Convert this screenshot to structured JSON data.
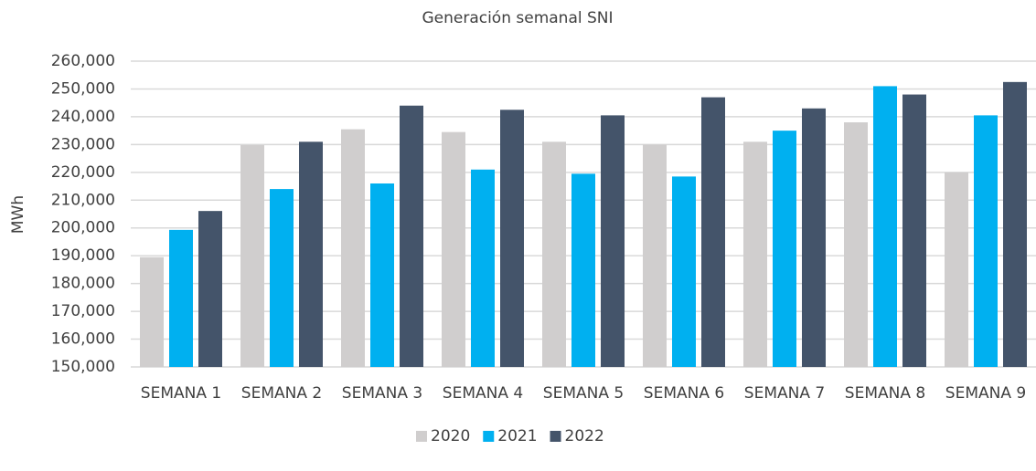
{
  "chart_data": {
    "type": "bar",
    "title": "Generación semanal SNI",
    "y_label": "MWh",
    "categories": [
      "SEMANA 1",
      "SEMANA 2",
      "SEMANA 3",
      "SEMANA 4",
      "SEMANA 5",
      "SEMANA 6",
      "SEMANA 7",
      "SEMANA 8",
      "SEMANA 9"
    ],
    "series": [
      {
        "name": "2020",
        "color": "#d0cece",
        "values": [
          189500,
          229800,
          235500,
          234500,
          231000,
          230000,
          231000,
          238000,
          220000
        ]
      },
      {
        "name": "2021",
        "color": "#00b0f0",
        "values": [
          199300,
          214000,
          216000,
          221000,
          219500,
          218500,
          235000,
          251000,
          240500
        ]
      },
      {
        "name": "2022",
        "color": "#44546a",
        "values": [
          206100,
          231000,
          244000,
          242500,
          240500,
          247000,
          243000,
          248000,
          252500
        ]
      }
    ],
    "ylim": [
      150000,
      260000
    ],
    "yticks": [
      {
        "value": 150000,
        "label": "150,000"
      },
      {
        "value": 160000,
        "label": "160,000"
      },
      {
        "value": 170000,
        "label": "170,000"
      },
      {
        "value": 180000,
        "label": "180,000"
      },
      {
        "value": 190000,
        "label": "190,000"
      },
      {
        "value": 200000,
        "label": "200,000"
      },
      {
        "value": 210000,
        "label": "210,000"
      },
      {
        "value": 220000,
        "label": "220,000"
      },
      {
        "value": 230000,
        "label": "230,000"
      },
      {
        "value": 240000,
        "label": "240,000"
      },
      {
        "value": 250000,
        "label": "250,000"
      },
      {
        "value": 260000,
        "label": "260,000"
      }
    ],
    "grid": true,
    "legend": "bottom"
  }
}
